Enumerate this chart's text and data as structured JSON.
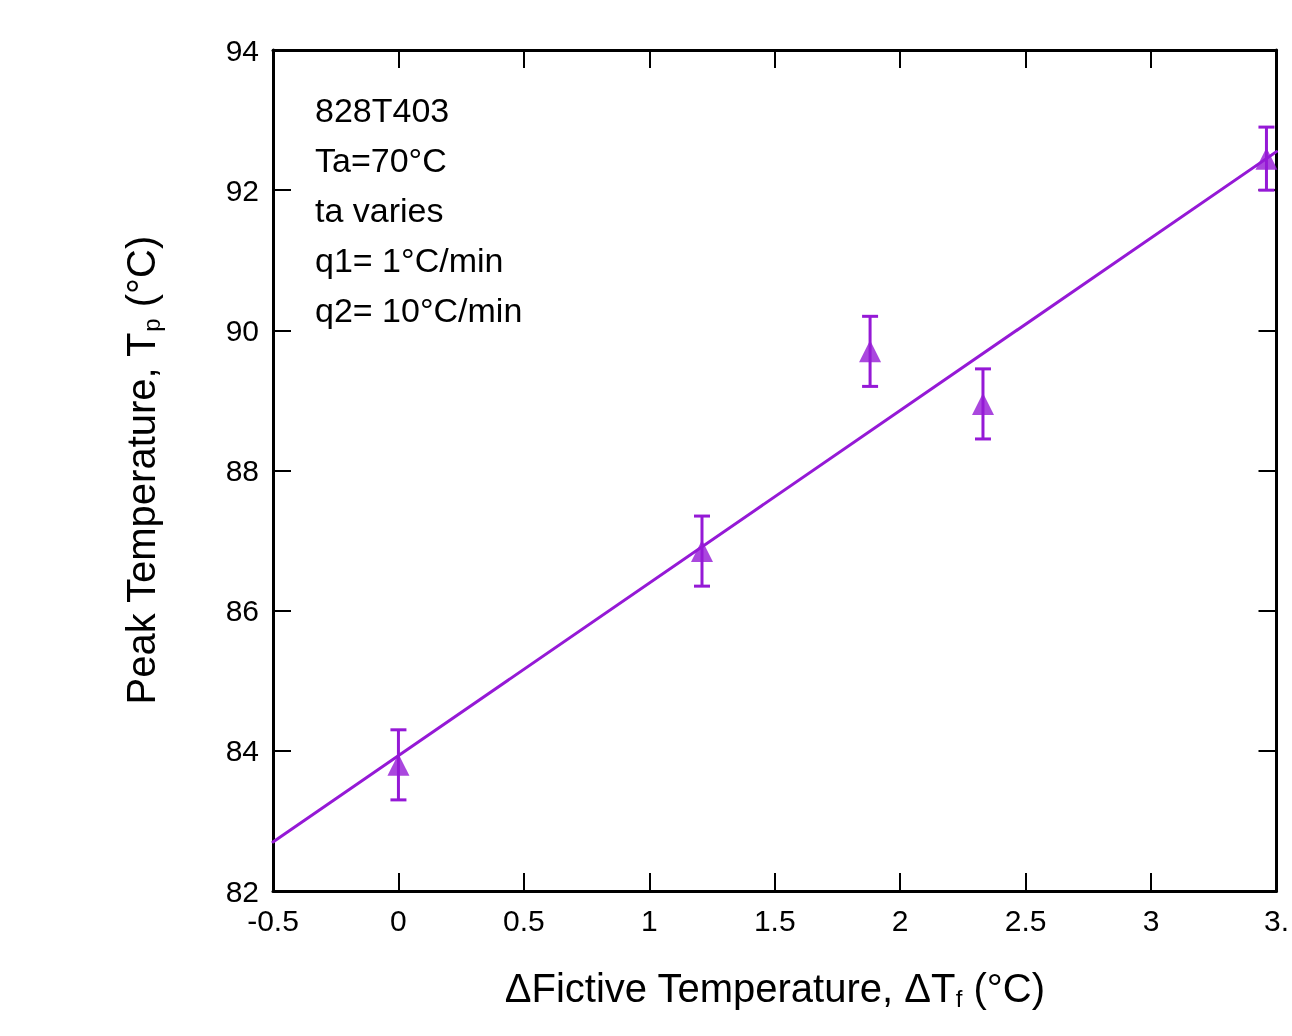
{
  "chart_data": {
    "type": "scatter",
    "xlabel": "ΔFictive Temperature, ΔT$_{f}$ (°C)",
    "ylabel": "Peak Temperature, T$_{p}$ (°C)",
    "annotations": [
      "828T403",
      "Ta=70°C",
      "ta varies",
      "q1= 1°C/min",
      "q2= 10°C/min"
    ],
    "xlim": [
      -0.5,
      3.5
    ],
    "ylim": [
      82,
      94
    ],
    "xticks": [
      -0.5,
      0,
      0.5,
      1,
      1.5,
      2,
      2.5,
      3,
      {
        "value": 3.5,
        "label": "3."
      }
    ],
    "yticks": [
      82,
      84,
      86,
      88,
      90,
      92,
      94
    ],
    "grid": false,
    "series": [
      {
        "color": "#9519d6",
        "marker": "triangle",
        "x": [
          0,
          1.21,
          1.88,
          2.33,
          3.46
        ],
        "values": [
          83.8,
          86.85,
          89.7,
          88.95,
          92.45
        ],
        "errors": [
          0.5,
          0.5,
          0.5,
          0.5,
          0.45
        ]
      },
      {
        "type": "line",
        "color": "#9519d6",
        "marker": "none",
        "line_style": "solid",
        "x": [
          -0.5,
          3.5
        ],
        "values": [
          82.7,
          92.55
        ]
      }
    ]
  }
}
